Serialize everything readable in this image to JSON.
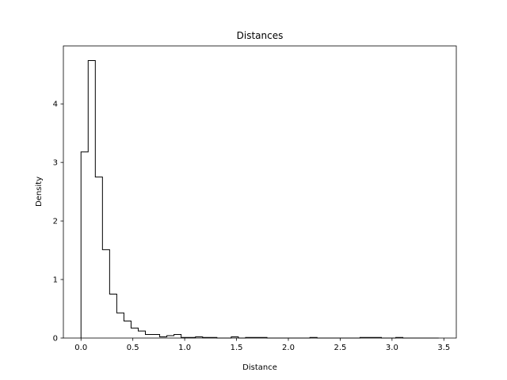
{
  "chart_data": {
    "type": "histogram-step",
    "title": "Distances",
    "xlabel": "Distance",
    "ylabel": "Density",
    "xlim": [
      -0.17,
      3.62
    ],
    "ylim": [
      0,
      4.99
    ],
    "xticks": [
      0.0,
      0.5,
      1.0,
      1.5,
      2.0,
      2.5,
      3.0,
      3.5
    ],
    "xtick_labels": [
      "0.0",
      "0.5",
      "1.0",
      "1.5",
      "2.0",
      "2.5",
      "3.0",
      "3.5"
    ],
    "yticks": [
      0,
      1,
      2,
      3,
      4
    ],
    "ytick_labels": [
      "0",
      "1",
      "2",
      "3",
      "4"
    ],
    "bin_start": 0.0,
    "bin_width": 0.069,
    "values": [
      3.18,
      4.74,
      2.75,
      1.51,
      0.75,
      0.43,
      0.29,
      0.17,
      0.12,
      0.06,
      0.06,
      0.02,
      0.04,
      0.06,
      0.01,
      0.01,
      0.02,
      0.01,
      0.01,
      0.0,
      0.0,
      0.02,
      0.0,
      0.01,
      0.01,
      0.01,
      0.0,
      0.0,
      0.0,
      0.0,
      0.0,
      0.0,
      0.01,
      0.0,
      0.0,
      0.0,
      0.0,
      0.0,
      0.0,
      0.01,
      0.01,
      0.01,
      0.0,
      0.0,
      0.01,
      0.0,
      0.0,
      0.0,
      0.0,
      0.0
    ],
    "color": "#000000",
    "grid": false,
    "legend": "none"
  }
}
